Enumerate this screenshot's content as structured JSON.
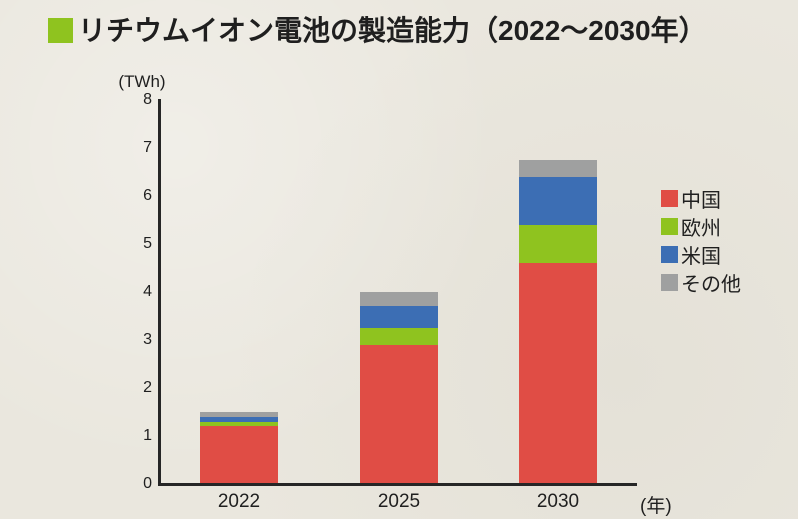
{
  "title": {
    "text": "リチウムイオン電池の製造能力（2022〜2030年）",
    "bullet_color": "#8fc31f"
  },
  "axis": {
    "y_unit": "(TWh)",
    "x_unit": "(年)"
  },
  "chart_data": {
    "type": "bar",
    "stacked": true,
    "title": "リチウムイオン電池の製造能力（2022〜2030年）",
    "categories": [
      "2022",
      "2025",
      "2030"
    ],
    "series": [
      {
        "name": "中国",
        "color": "#e04d45",
        "values": [
          1.2,
          2.9,
          4.6
        ]
      },
      {
        "name": "欧州",
        "color": "#8fc31f",
        "values": [
          0.1,
          0.35,
          0.8
        ]
      },
      {
        "name": "米国",
        "color": "#3c6eb4",
        "values": [
          0.1,
          0.45,
          1.0
        ]
      },
      {
        "name": "その他",
        "color": "#9fa0a0",
        "values": [
          0.1,
          0.3,
          0.35
        ]
      }
    ],
    "totals": [
      1.5,
      4.0,
      6.75
    ],
    "ylabel": "(TWh)",
    "xlabel": "(年)",
    "ylim": [
      0,
      8
    ],
    "yticks": [
      0,
      1,
      2,
      3,
      4,
      5,
      6,
      7,
      8
    ],
    "grid": false,
    "legend_position": "right"
  },
  "colors": {
    "background": "#eae7de",
    "axis": "#262626",
    "text": "#1f1f1f"
  }
}
